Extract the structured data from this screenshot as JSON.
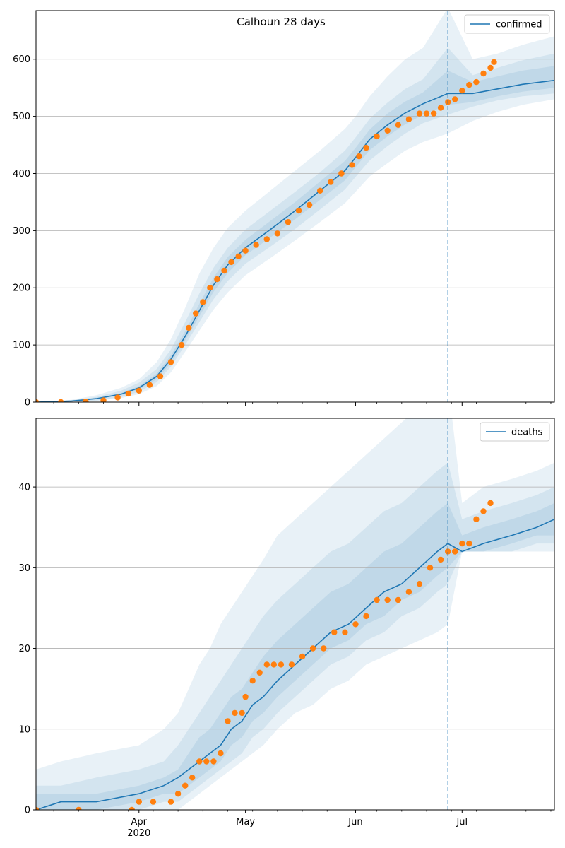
{
  "figure": {
    "title": "Calhoun 28 days"
  },
  "colors": {
    "model": "#1f77b4",
    "observed": "#ff7f0e",
    "band": "#1f77b4",
    "grid": "#b0b0b0",
    "forecast_line": "#1f77b4"
  },
  "chart_data": [
    {
      "type": "line",
      "name": "confirmed-panel",
      "title": "Calhoun 28 days",
      "xaxis": {
        "type": "date",
        "range": [
          "2020-03-03",
          "2020-07-27"
        ],
        "major_ticks": [
          {
            "date": "2020-04-01",
            "label": "Apr",
            "sublabel": "2020"
          },
          {
            "date": "2020-05-01",
            "label": "May",
            "sublabel": ""
          },
          {
            "date": "2020-06-01",
            "label": "Jun",
            "sublabel": ""
          },
          {
            "date": "2020-07-01",
            "label": "Jul",
            "sublabel": ""
          }
        ],
        "show_labels": false
      },
      "yaxis": {
        "range": [
          0,
          685
        ],
        "ticks": [
          0,
          100,
          200,
          300,
          400,
          500,
          600
        ]
      },
      "grid": "y",
      "legend": {
        "placement": "top-right",
        "entries": [
          "confirmed"
        ]
      },
      "forecast_start": "2020-06-27",
      "model_series": {
        "name": "confirmed",
        "x": [
          "2020-03-03",
          "2020-03-13",
          "2020-03-20",
          "2020-03-27",
          "2020-04-01",
          "2020-04-06",
          "2020-04-10",
          "2020-04-14",
          "2020-04-18",
          "2020-04-22",
          "2020-04-26",
          "2020-05-01",
          "2020-05-08",
          "2020-05-15",
          "2020-05-22",
          "2020-05-29",
          "2020-06-01",
          "2020-06-05",
          "2020-06-10",
          "2020-06-15",
          "2020-06-20",
          "2020-06-27",
          "2020-07-04",
          "2020-07-11",
          "2020-07-18",
          "2020-07-27"
        ],
        "y": [
          0,
          2,
          6,
          14,
          25,
          45,
          75,
          115,
          160,
          205,
          240,
          270,
          302,
          335,
          370,
          405,
          428,
          460,
          485,
          506,
          522,
          540,
          540,
          548,
          556,
          563
        ]
      },
      "bands": [
        {
          "level": "outer",
          "lower": [
            0,
            0,
            2,
            7,
            14,
            28,
            52,
            88,
            125,
            162,
            192,
            222,
            252,
            283,
            315,
            348,
            368,
            395,
            418,
            440,
            455,
            470,
            492,
            508,
            520,
            530
          ],
          "upper": [
            0,
            4,
            12,
            25,
            40,
            70,
            110,
            165,
            225,
            270,
            305,
            335,
            370,
            405,
            440,
            478,
            500,
            535,
            570,
            600,
            620,
            690,
            600,
            610,
            625,
            640
          ]
        },
        {
          "level": "middle",
          "lower": [
            0,
            1,
            3,
            9,
            18,
            35,
            62,
            100,
            140,
            180,
            212,
            242,
            272,
            303,
            337,
            372,
            394,
            423,
            448,
            470,
            488,
            503,
            517,
            528,
            535,
            540
          ],
          "upper": [
            0,
            3,
            9,
            20,
            34,
            58,
            92,
            140,
            190,
            235,
            270,
            302,
            335,
            368,
            402,
            440,
            463,
            496,
            524,
            548,
            565,
            620,
            572,
            585,
            598,
            610
          ]
        },
        {
          "level": "inner",
          "lower": [
            0,
            1,
            5,
            12,
            22,
            40,
            68,
            108,
            150,
            193,
            226,
            257,
            288,
            320,
            354,
            388,
            411,
            441,
            465,
            486,
            503,
            520,
            525,
            535,
            543,
            550
          ],
          "upper": [
            0,
            2,
            7,
            16,
            28,
            50,
            82,
            124,
            172,
            218,
            254,
            284,
            317,
            350,
            386,
            422,
            445,
            477,
            505,
            526,
            542,
            580,
            560,
            570,
            580,
            588
          ]
        }
      ],
      "observed_series": {
        "name": "observed confirmed",
        "x": [
          "2020-03-03",
          "2020-03-10",
          "2020-03-17",
          "2020-03-22",
          "2020-03-26",
          "2020-03-29",
          "2020-04-01",
          "2020-04-04",
          "2020-04-07",
          "2020-04-10",
          "2020-04-13",
          "2020-04-15",
          "2020-04-17",
          "2020-04-19",
          "2020-04-21",
          "2020-04-23",
          "2020-04-25",
          "2020-04-27",
          "2020-04-29",
          "2020-05-01",
          "2020-05-04",
          "2020-05-07",
          "2020-05-10",
          "2020-05-13",
          "2020-05-16",
          "2020-05-19",
          "2020-05-22",
          "2020-05-25",
          "2020-05-28",
          "2020-05-31",
          "2020-06-02",
          "2020-06-04",
          "2020-06-07",
          "2020-06-10",
          "2020-06-13",
          "2020-06-16",
          "2020-06-19",
          "2020-06-21",
          "2020-06-23",
          "2020-06-25",
          "2020-06-27",
          "2020-06-29",
          "2020-07-01",
          "2020-07-03",
          "2020-07-05",
          "2020-07-07",
          "2020-07-09",
          "2020-07-10"
        ],
        "y": [
          0,
          0,
          1,
          3,
          8,
          15,
          20,
          30,
          45,
          70,
          100,
          130,
          155,
          175,
          200,
          215,
          230,
          245,
          255,
          265,
          275,
          285,
          295,
          315,
          335,
          345,
          370,
          385,
          400,
          415,
          430,
          445,
          465,
          475,
          485,
          495,
          505,
          505,
          505,
          515,
          525,
          530,
          545,
          555,
          560,
          575,
          585,
          595
        ]
      }
    },
    {
      "type": "line",
      "name": "deaths-panel",
      "xaxis": {
        "type": "date",
        "range": [
          "2020-03-03",
          "2020-07-27"
        ],
        "major_ticks": [
          {
            "date": "2020-04-01",
            "label": "Apr",
            "sublabel": "2020"
          },
          {
            "date": "2020-05-01",
            "label": "May",
            "sublabel": ""
          },
          {
            "date": "2020-06-01",
            "label": "Jun",
            "sublabel": ""
          },
          {
            "date": "2020-07-01",
            "label": "Jul",
            "sublabel": ""
          }
        ],
        "show_labels": true
      },
      "yaxis": {
        "range": [
          0,
          48.5
        ],
        "ticks": [
          0,
          10,
          20,
          30,
          40
        ]
      },
      "grid": "y",
      "legend": {
        "placement": "top-right",
        "entries": [
          "deaths"
        ]
      },
      "forecast_start": "2020-06-27",
      "model_series": {
        "name": "deaths",
        "x": [
          "2020-03-03",
          "2020-03-10",
          "2020-03-20",
          "2020-04-01",
          "2020-04-08",
          "2020-04-12",
          "2020-04-15",
          "2020-04-18",
          "2020-04-21",
          "2020-04-24",
          "2020-04-27",
          "2020-04-30",
          "2020-05-03",
          "2020-05-06",
          "2020-05-10",
          "2020-05-15",
          "2020-05-20",
          "2020-05-25",
          "2020-05-30",
          "2020-06-04",
          "2020-06-09",
          "2020-06-14",
          "2020-06-19",
          "2020-06-24",
          "2020-06-27",
          "2020-07-01",
          "2020-07-07",
          "2020-07-15",
          "2020-07-22",
          "2020-07-27"
        ],
        "y": [
          0,
          1,
          1,
          2,
          3,
          4,
          5,
          6,
          7,
          8,
          10,
          11,
          13,
          14,
          16,
          18,
          20,
          22,
          23,
          25,
          27,
          28,
          30,
          32,
          33,
          32,
          33,
          34,
          35,
          36
        ]
      },
      "bands": [
        {
          "level": "outer",
          "lower": [
            0,
            0,
            0,
            0,
            0,
            0,
            1,
            2,
            3,
            4,
            5,
            6,
            7,
            8,
            10,
            12,
            13,
            15,
            16,
            18,
            19,
            20,
            21,
            22,
            23,
            32,
            32,
            32,
            32,
            32
          ],
          "upper": [
            5,
            6,
            7,
            8,
            10,
            12,
            15,
            18,
            20,
            23,
            25,
            27,
            29,
            31,
            34,
            36,
            38,
            40,
            42,
            44,
            46,
            48,
            50,
            52,
            53,
            38,
            40,
            41,
            42,
            43
          ]
        },
        {
          "level": "middle",
          "lower": [
            0,
            0,
            0,
            0,
            1,
            1,
            2,
            3,
            4,
            5,
            6,
            7,
            9,
            10,
            12,
            14,
            16,
            18,
            19,
            21,
            22,
            24,
            25,
            27,
            28,
            32,
            32,
            32,
            33,
            33
          ],
          "upper": [
            3,
            3,
            4,
            5,
            6,
            8,
            10,
            12,
            14,
            16,
            18,
            20,
            22,
            24,
            26,
            28,
            30,
            32,
            33,
            35,
            37,
            38,
            40,
            42,
            43,
            36,
            37,
            38,
            39,
            40
          ]
        },
        {
          "level": "inner",
          "lower": [
            0,
            0,
            0,
            1,
            2,
            2,
            3,
            4,
            5,
            6,
            8,
            9,
            11,
            12,
            14,
            16,
            18,
            20,
            21,
            23,
            24,
            26,
            27,
            29,
            30,
            32,
            32,
            33,
            34,
            34
          ],
          "upper": [
            2,
            2,
            2,
            3,
            4,
            5,
            7,
            9,
            10,
            12,
            14,
            15,
            17,
            19,
            21,
            23,
            25,
            27,
            28,
            30,
            32,
            33,
            35,
            37,
            38,
            34,
            35,
            36,
            37,
            38
          ]
        }
      ],
      "observed_series": {
        "name": "observed deaths",
        "x": [
          "2020-03-03",
          "2020-03-15",
          "2020-03-30",
          "2020-04-01",
          "2020-04-05",
          "2020-04-10",
          "2020-04-12",
          "2020-04-14",
          "2020-04-16",
          "2020-04-18",
          "2020-04-20",
          "2020-04-22",
          "2020-04-24",
          "2020-04-26",
          "2020-04-28",
          "2020-04-30",
          "2020-05-01",
          "2020-05-03",
          "2020-05-05",
          "2020-05-07",
          "2020-05-09",
          "2020-05-11",
          "2020-05-14",
          "2020-05-17",
          "2020-05-20",
          "2020-05-23",
          "2020-05-26",
          "2020-05-29",
          "2020-06-01",
          "2020-06-04",
          "2020-06-07",
          "2020-06-10",
          "2020-06-13",
          "2020-06-16",
          "2020-06-19",
          "2020-06-22",
          "2020-06-25",
          "2020-06-27",
          "2020-06-29",
          "2020-07-01",
          "2020-07-03",
          "2020-07-05",
          "2020-07-07",
          "2020-07-09"
        ],
        "y": [
          0,
          0,
          0,
          1,
          1,
          1,
          2,
          3,
          4,
          6,
          6,
          6,
          7,
          11,
          12,
          12,
          14,
          16,
          17,
          18,
          18,
          18,
          18,
          19,
          20,
          20,
          22,
          22,
          23,
          24,
          26,
          26,
          26,
          27,
          28,
          30,
          31,
          32,
          32,
          33,
          33,
          36,
          37,
          38
        ]
      }
    }
  ]
}
